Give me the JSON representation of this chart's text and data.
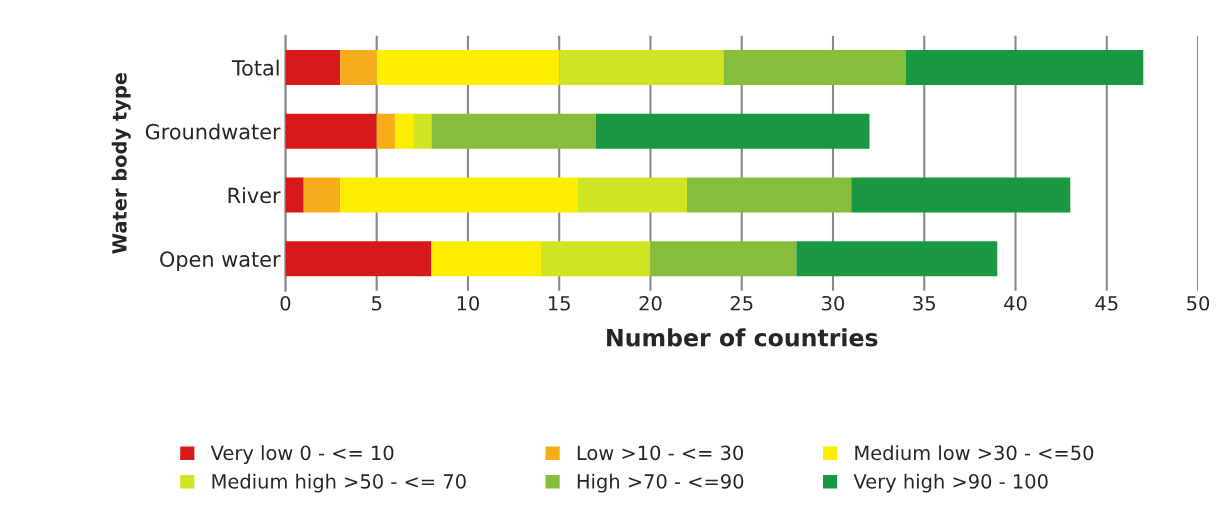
{
  "chart_data": {
    "type": "bar",
    "orientation": "horizontal",
    "stacked": true,
    "xlabel": "Number of countries",
    "ylabel": "Water body type",
    "categories": [
      "Total",
      "Groundwater",
      "River",
      "Open water"
    ],
    "series": [
      {
        "name": "Very low 0 - <= 10",
        "color": "#d7191c",
        "values": [
          3,
          5,
          1,
          8
        ]
      },
      {
        "name": "Low >10 - <= 30",
        "color": "#f5ad19",
        "values": [
          2,
          1,
          2,
          0
        ]
      },
      {
        "name": "Medium low >30 - <=50",
        "color": "#fdee00",
        "values": [
          10,
          1,
          13,
          6
        ]
      },
      {
        "name": "Medium high >50 - <= 70",
        "color": "#d1e423",
        "values": [
          9,
          1,
          6,
          6
        ]
      },
      {
        "name": "High >70 - <=90",
        "color": "#86bd3b",
        "values": [
          10,
          9,
          9,
          8
        ]
      },
      {
        "name": "Very high >90 - 100",
        "color": "#199741",
        "values": [
          13,
          15,
          12,
          11
        ]
      }
    ],
    "xlim": [
      0,
      50
    ],
    "xticks": [
      0,
      5,
      10,
      15,
      20,
      25,
      30,
      35,
      40,
      45,
      50
    ],
    "grid": "x",
    "legend": "bottom"
  }
}
